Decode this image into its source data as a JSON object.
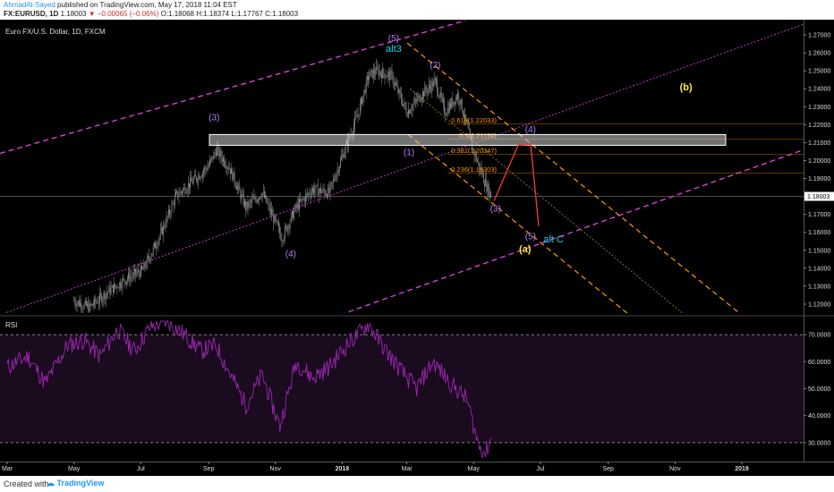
{
  "header": {
    "author": "AhmadAl-Sayed",
    "published": "published on TradingView.com, May 17, 2018 11:04 EST",
    "symbol": "FX:EURUSD, 1D",
    "last": "1.18003",
    "change": "▼ −0.00065 (−0.06%)",
    "ohlc": "O:1.18068 H:1.18374 L:1.17767 C:1.18003"
  },
  "footer": {
    "created": "Created with",
    "brand": "TradingView"
  },
  "colors": {
    "background": "#000000",
    "candle": "#9a9a9a",
    "wave_label": "#b57bff",
    "alt_label": "#1ed6e6",
    "abc_label": "#ffeb3b",
    "main_channel": "#d640d6",
    "fib_channel": "#ff9800",
    "fib_text": "#ff9800",
    "zone": "#d0d0d0",
    "projection": "#e53935",
    "rsi_line": "#9c27b0",
    "rsi_band": "#1a0b1f"
  },
  "chart_data": [
    {
      "type": "candlestick",
      "title": "Euro FX/U.S. Dollar, 1D, FXCM",
      "x_ticks": [
        "Mar",
        "May",
        "Jul",
        "Sep",
        "Nov",
        "2018",
        "Mar",
        "May",
        "Jul",
        "Sep",
        "Nov",
        "2019"
      ],
      "y_ticks": [
        "1.27000",
        "1.26000",
        "1.25000",
        "1.24000",
        "1.23000",
        "1.22000",
        "1.21000",
        "1.20000",
        "1.19000",
        "1.18000",
        "1.17000",
        "1.16000",
        "1.15000",
        "1.14000",
        "1.13000",
        "1.12000"
      ],
      "ylim": [
        1.115,
        1.276
      ],
      "last_price": "1.18003",
      "close_path": [
        [
          "2017-05-01",
          1.122
        ],
        [
          "2017-05-15",
          1.118
        ],
        [
          "2017-06-01",
          1.127
        ],
        [
          "2017-06-20",
          1.135
        ],
        [
          "2017-07-03",
          1.139
        ],
        [
          "2017-07-20",
          1.16
        ],
        [
          "2017-08-02",
          1.18
        ],
        [
          "2017-08-20",
          1.19
        ],
        [
          "2017-09-01",
          1.197
        ],
        [
          "2017-09-08",
          1.206
        ],
        [
          "2017-09-20",
          1.196
        ],
        [
          "2017-10-05",
          1.174
        ],
        [
          "2017-10-20",
          1.182
        ],
        [
          "2017-11-07",
          1.157
        ],
        [
          "2017-11-20",
          1.174
        ],
        [
          "2017-12-05",
          1.184
        ],
        [
          "2017-12-20",
          1.182
        ],
        [
          "2018-01-02",
          1.204
        ],
        [
          "2018-01-15",
          1.225
        ],
        [
          "2018-01-25",
          1.247
        ],
        [
          "2018-02-01",
          1.25
        ],
        [
          "2018-02-15",
          1.247
        ],
        [
          "2018-03-01",
          1.227
        ],
        [
          "2018-03-15",
          1.237
        ],
        [
          "2018-03-27",
          1.244
        ],
        [
          "2018-04-05",
          1.227
        ],
        [
          "2018-04-17",
          1.237
        ],
        [
          "2018-04-30",
          1.207
        ],
        [
          "2018-05-10",
          1.19
        ],
        [
          "2018-05-17",
          1.18
        ]
      ],
      "fib_levels": [
        {
          "label": "0.618(1.22033)",
          "value": 1.22033
        },
        {
          "label": "0.5(1.21190)",
          "value": 1.2119
        },
        {
          "label": "0.382(1.20347)",
          "value": 1.20347
        },
        {
          "label": "0.236(1.19303)",
          "value": 1.19303
        }
      ],
      "resistance_zone": [
        1.2085,
        1.2145
      ],
      "wave_labels": [
        {
          "text": "(3)",
          "date": "2017-09-06",
          "price": 1.2225,
          "kind": "wave"
        },
        {
          "text": "(4)",
          "date": "2017-11-15",
          "price": 1.1465,
          "kind": "wave"
        },
        {
          "text": "(5)",
          "date": "2018-02-17",
          "price": 1.2665,
          "kind": "wave"
        },
        {
          "text": "alt3",
          "date": "2018-02-17",
          "price": 1.2605,
          "kind": "alt"
        },
        {
          "text": "(2)",
          "date": "2018-03-27",
          "price": 1.2515,
          "kind": "wave"
        },
        {
          "text": "(1)",
          "date": "2018-03-03",
          "price": 1.203,
          "kind": "wave"
        },
        {
          "text": "(3)",
          "date": "2018-05-21",
          "price": 1.1715,
          "kind": "wave"
        },
        {
          "text": "(4)",
          "date": "2018-06-22",
          "price": 1.2158,
          "kind": "wave"
        },
        {
          "text": "(5)",
          "date": "2018-06-22",
          "price": 1.1562,
          "kind": "wave"
        },
        {
          "text": "alt C",
          "date": "2018-07-13",
          "price": 1.1545,
          "kind": "alt"
        },
        {
          "text": "(a)",
          "date": "2018-06-17",
          "price": 1.149,
          "kind": "abc"
        },
        {
          "text": "(b)",
          "date": "2018-11-11",
          "price": 1.2392,
          "kind": "abc"
        }
      ]
    },
    {
      "type": "line",
      "title": "RSI",
      "y_ticks": [
        "70.0000",
        "60.0000",
        "50.0000",
        "40.0000",
        "30.0000"
      ],
      "ylim": [
        23,
        76
      ],
      "overbought": 70,
      "oversold": 30,
      "series": [
        {
          "values": [
            [
              "2017-03-01",
              58
            ],
            [
              "2017-03-20",
              62
            ],
            [
              "2017-04-05",
              52
            ],
            [
              "2017-04-25",
              66
            ],
            [
              "2017-05-10",
              68
            ],
            [
              "2017-05-25",
              62
            ],
            [
              "2017-06-10",
              72
            ],
            [
              "2017-06-25",
              64
            ],
            [
              "2017-07-10",
              73
            ],
            [
              "2017-07-25",
              75
            ],
            [
              "2017-08-10",
              70
            ],
            [
              "2017-08-25",
              64
            ],
            [
              "2017-09-08",
              66
            ],
            [
              "2017-09-20",
              56
            ],
            [
              "2017-10-05",
              44
            ],
            [
              "2017-10-20",
              55
            ],
            [
              "2017-11-05",
              36
            ],
            [
              "2017-11-20",
              60
            ],
            [
              "2017-12-05",
              54
            ],
            [
              "2017-12-20",
              58
            ],
            [
              "2018-01-05",
              66
            ],
            [
              "2018-01-25",
              74
            ],
            [
              "2018-02-10",
              64
            ],
            [
              "2018-02-25",
              56
            ],
            [
              "2018-03-10",
              50
            ],
            [
              "2018-03-25",
              60
            ],
            [
              "2018-04-10",
              52
            ],
            [
              "2018-04-25",
              46
            ],
            [
              "2018-05-05",
              30
            ],
            [
              "2018-05-12",
              26
            ],
            [
              "2018-05-17",
              32
            ]
          ]
        }
      ]
    }
  ]
}
